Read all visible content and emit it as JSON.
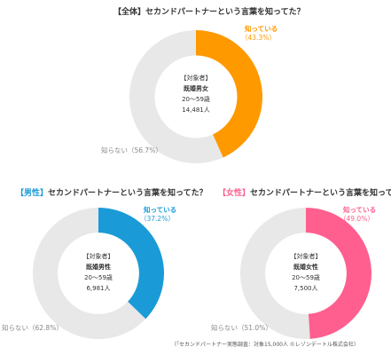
{
  "charts": [
    {
      "id": "overall",
      "title_prefix": "【全体】",
      "title_suffix": "セカンドパートナーという言葉を知ってた？",
      "accent_color": "#ff9900",
      "known_label": "知っている",
      "known_pct": "（43.3%）",
      "unknown_label": "知らない（56.7%）",
      "center": {
        "line1": "【対象者】",
        "line2": "既婚男女",
        "line3": "20～59歳",
        "line4": "14,481人"
      }
    },
    {
      "id": "male",
      "title_prefix": "【男性】",
      "title_suffix": "セカンドパートナーという言葉を知ってた？",
      "accent_color": "#1a9bd7",
      "known_label": "知っている",
      "known_pct": "（37.2%）",
      "unknown_label": "知らない（62.8%）",
      "center": {
        "line1": "【対象者】",
        "line2": "既婚男性",
        "line3": "20～59歳",
        "line4": "6,981人"
      }
    },
    {
      "id": "female",
      "title_prefix": "【女性】",
      "title_suffix": "セカンドパートナーという言葉を知ってた？",
      "accent_color": "#ff5f8f",
      "known_label": "知っている",
      "known_pct": "（49.0%）",
      "unknown_label": "知らない（51.0%）",
      "center": {
        "line1": "【対象者】",
        "line2": "既婚女性",
        "line3": "20～59歳",
        "line4": "7,500人"
      }
    }
  ],
  "chart_data": [
    {
      "type": "pie",
      "title": "【全体】セカンドパートナーという言葉を知ってた？",
      "categories": [
        "知っている",
        "知らない"
      ],
      "values": [
        43.3,
        56.7
      ],
      "colors": [
        "#ff9900",
        "#e8e8e8"
      ]
    },
    {
      "type": "pie",
      "title": "【男性】セカンドパートナーという言葉を知ってた？",
      "categories": [
        "知っている",
        "知らない"
      ],
      "values": [
        37.2,
        62.8
      ],
      "colors": [
        "#1a9bd7",
        "#e8e8e8"
      ]
    },
    {
      "type": "pie",
      "title": "【女性】セカンドパートナーという言葉を知ってた？",
      "categories": [
        "知っている",
        "知らない"
      ],
      "values": [
        49.0,
        51.0
      ],
      "colors": [
        "#ff5f8f",
        "#e8e8e8"
      ]
    }
  ],
  "footnote": "（「セカンドパートナー実態調査：対象15,000人 ©レゾンデートル株式会社）"
}
